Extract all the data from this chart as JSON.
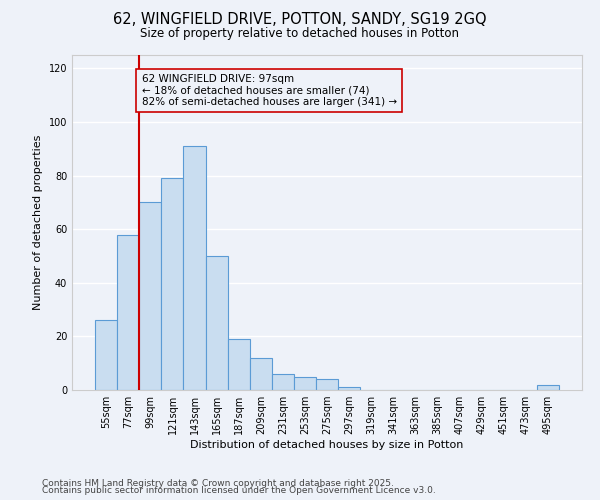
{
  "title": "62, WINGFIELD DRIVE, POTTON, SANDY, SG19 2GQ",
  "subtitle": "Size of property relative to detached houses in Potton",
  "xlabel": "Distribution of detached houses by size in Potton",
  "ylabel": "Number of detached properties",
  "categories": [
    "55sqm",
    "77sqm",
    "99sqm",
    "121sqm",
    "143sqm",
    "165sqm",
    "187sqm",
    "209sqm",
    "231sqm",
    "253sqm",
    "275sqm",
    "297sqm",
    "319sqm",
    "341sqm",
    "363sqm",
    "385sqm",
    "407sqm",
    "429sqm",
    "451sqm",
    "473sqm",
    "495sqm"
  ],
  "values": [
    26,
    58,
    70,
    79,
    91,
    50,
    19,
    12,
    6,
    5,
    4,
    1,
    0,
    0,
    0,
    0,
    0,
    0,
    0,
    0,
    2
  ],
  "bar_color": "#c9ddf0",
  "bar_edge_color": "#5b9bd5",
  "vline_color": "#cc0000",
  "annotation_text": "62 WINGFIELD DRIVE: 97sqm\n← 18% of detached houses are smaller (74)\n82% of semi-detached houses are larger (341) →",
  "annotation_box_edge": "#cc0000",
  "ylim": [
    0,
    125
  ],
  "yticks": [
    0,
    20,
    40,
    60,
    80,
    100,
    120
  ],
  "background_color": "#eef2f9",
  "footer_line1": "Contains HM Land Registry data © Crown copyright and database right 2025.",
  "footer_line2": "Contains public sector information licensed under the Open Government Licence v3.0.",
  "bar_width": 1.0,
  "title_fontsize": 10.5,
  "subtitle_fontsize": 8.5,
  "axis_label_fontsize": 8,
  "tick_fontsize": 7,
  "annotation_fontsize": 7.5,
  "footer_fontsize": 6.5
}
